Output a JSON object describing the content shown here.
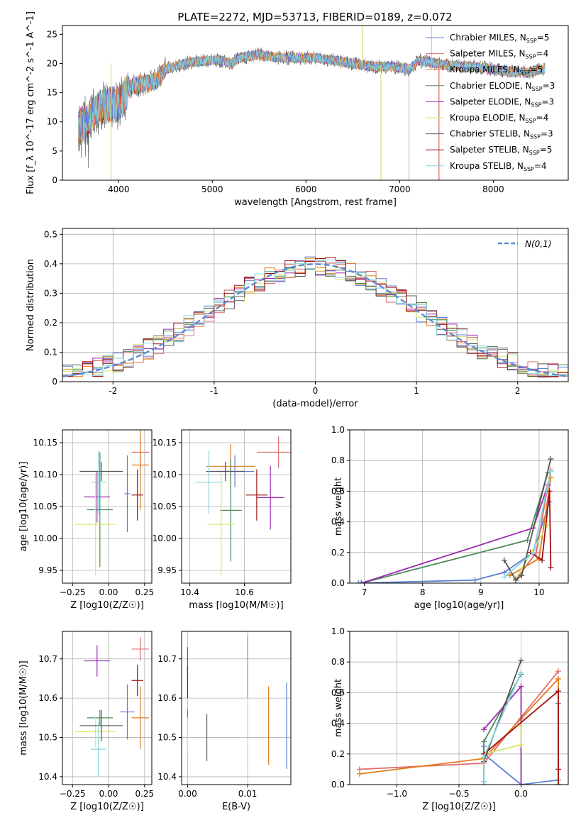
{
  "title": "PLATE=2272, MJD=53713, FIBERID=0189, z=0.072",
  "colors": [
    "#5b7fd6",
    "#e06c6c",
    "#e07b1c",
    "#4c8a5a",
    "#9b2ab0",
    "#d6e86a",
    "#555555",
    "#a01010",
    "#86d6e0"
  ],
  "legend": [
    "Chrabier MILES, N_SSP=5",
    "Salpeter MILES, N_SSP=4",
    "Kroupa MILES, N_SSP=5",
    "Chabrier ELODIE, N_SSP=3",
    "Salpeter ELODIE, N_SSP=3",
    "Kroupa ELODIE, N_SSP=4",
    "Chabrier STELIB, N_SSP=3",
    "Salpeter STELIB, N_SSP=5",
    "Kroupa STELIB, N_SSP=4"
  ],
  "chart_data": [
    {
      "type": "line",
      "title": "PLATE=2272, MJD=53713, FIBERID=0189, z=0.072",
      "xlabel": "wavelength [Angstrom, rest frame]",
      "ylabel": "Flux [f_λ 10^-17 erg cm^-2 s^-1 A^-1]",
      "xlim": [
        3400,
        8800
      ],
      "ylim": [
        0,
        26.5
      ],
      "xticks": [
        4000,
        5000,
        6000,
        7000,
        8000
      ],
      "yticks": [
        0,
        5,
        10,
        15,
        20,
        25
      ],
      "continuum": [
        [
          3570,
          9
        ],
        [
          3700,
          11
        ],
        [
          3800,
          12.5
        ],
        [
          3900,
          13
        ],
        [
          4000,
          13
        ],
        [
          4100,
          15.5
        ],
        [
          4200,
          16.5
        ],
        [
          4300,
          16.5
        ],
        [
          4400,
          17
        ],
        [
          4500,
          19
        ],
        [
          4700,
          20
        ],
        [
          4900,
          20.5
        ],
        [
          5100,
          20.5
        ],
        [
          5200,
          20
        ],
        [
          5300,
          21
        ],
        [
          5500,
          21.5
        ],
        [
          5700,
          21
        ],
        [
          5900,
          21
        ],
        [
          6100,
          21
        ],
        [
          6300,
          20.5
        ],
        [
          6500,
          20
        ],
        [
          6700,
          19.5
        ],
        [
          6900,
          19.5
        ],
        [
          7100,
          19
        ],
        [
          7200,
          20.5
        ],
        [
          7400,
          20
        ],
        [
          7600,
          19.5
        ],
        [
          7800,
          19.5
        ],
        [
          8000,
          19
        ],
        [
          8200,
          18.5
        ],
        [
          8400,
          18.5
        ],
        [
          8500,
          19
        ]
      ],
      "spikes": [
        [
          3920,
          0
        ],
        [
          6800,
          0
        ],
        [
          7100,
          0
        ],
        [
          7420,
          0
        ],
        [
          7340,
          26.5
        ],
        [
          6600,
          26.5
        ]
      ]
    },
    {
      "type": "step",
      "xlabel": "(data-model)/error",
      "ylabel": "Normed distribution",
      "xlim": [
        -2.5,
        2.5
      ],
      "ylim": [
        0,
        0.52
      ],
      "xticks": [
        -2,
        -1,
        0,
        1,
        2
      ],
      "yticks": [
        0.0,
        0.1,
        0.2,
        0.3,
        0.4,
        0.5
      ],
      "legend": "N(0,1)",
      "bin_width": 0.1
    },
    {
      "type": "scatter",
      "xlabel": "Z [log10(Z/Z☉)]",
      "ylabel": "age [log10(age/yr)]",
      "xlim": [
        -0.32,
        0.3
      ],
      "ylim": [
        9.93,
        10.17
      ],
      "xticks": [
        -0.25,
        0.0,
        0.25
      ],
      "xticklabels": [
        "−0.25",
        "0.00",
        "0.25"
      ],
      "yticks": [
        9.95,
        10.0,
        10.05,
        10.1,
        10.15
      ],
      "yticklabels": [
        "9.95",
        "10.00",
        "10.05",
        "10.10",
        "10.15"
      ],
      "points": [
        {
          "c": 0,
          "x": 0.13,
          "y": 10.07,
          "xe": 0.02,
          "ye": 0.06
        },
        {
          "c": 1,
          "x": 0.22,
          "y": 10.135,
          "xe": 0.06,
          "ye": 0.025
        },
        {
          "c": 2,
          "x": 0.22,
          "y": 10.115,
          "xe": 0.06,
          "ye": 0.07
        },
        {
          "c": 3,
          "x": -0.06,
          "y": 10.045,
          "xe": 0.09,
          "ye": 0.09
        },
        {
          "c": 4,
          "x": -0.08,
          "y": 10.065,
          "xe": 0.09,
          "ye": 0.04
        },
        {
          "c": 5,
          "x": -0.09,
          "y": 10.022,
          "xe": 0.14,
          "ye": 0.08
        },
        {
          "c": 6,
          "x": -0.05,
          "y": 10.105,
          "xe": 0.15,
          "ye": 0.015
        },
        {
          "c": 7,
          "x": 0.2,
          "y": 10.068,
          "xe": 0.04,
          "ye": 0.04
        },
        {
          "c": 8,
          "x": -0.07,
          "y": 10.088,
          "xe": 0.05,
          "ye": 0.05
        }
      ]
    },
    {
      "type": "scatter",
      "xlabel": "mass [log10(M/M☉)]",
      "ylabel": "",
      "xlim": [
        10.37,
        10.77
      ],
      "ylim": [
        9.93,
        10.17
      ],
      "xticks": [
        10.4,
        10.6
      ],
      "xticklabels": [
        "10.4",
        "10.6"
      ],
      "yticks": [
        9.95,
        10.0,
        10.05,
        10.1,
        10.15
      ],
      "yticklabels": [
        "9.95",
        "10.00",
        "10.05",
        "10.10",
        "10.15"
      ],
      "points": [
        {
          "c": 0,
          "x": 10.565,
          "y": 10.105,
          "xe": 0.07,
          "ye": 0.025
        },
        {
          "c": 1,
          "x": 10.725,
          "y": 10.135,
          "xe": 0.08,
          "ye": 0.025
        },
        {
          "c": 2,
          "x": 10.55,
          "y": 10.113,
          "xe": 0.09,
          "ye": 0.035
        },
        {
          "c": 3,
          "x": 10.55,
          "y": 10.044,
          "xe": 0.04,
          "ye": 0.08
        },
        {
          "c": 4,
          "x": 10.695,
          "y": 10.064,
          "xe": 0.05,
          "ye": 0.05
        },
        {
          "c": 5,
          "x": 10.515,
          "y": 10.022,
          "xe": 0.05,
          "ye": 0.08
        },
        {
          "c": 6,
          "x": 10.53,
          "y": 10.105,
          "xe": 0.07,
          "ye": 0.015
        },
        {
          "c": 7,
          "x": 10.645,
          "y": 10.068,
          "xe": 0.04,
          "ye": 0.04
        },
        {
          "c": 8,
          "x": 10.47,
          "y": 10.088,
          "xe": 0.05,
          "ye": 0.05
        }
      ]
    },
    {
      "type": "line",
      "xlabel": "age  [log10(age/yr)]",
      "ylabel": "mass weight",
      "xlim": [
        6.75,
        10.5
      ],
      "ylim": [
        0,
        1
      ],
      "xticks": [
        7,
        8,
        9,
        10
      ],
      "xticklabels": [
        "7",
        "8",
        "9",
        "10"
      ],
      "yticks": [
        0,
        0.2,
        0.4,
        0.6,
        0.8,
        1.0
      ],
      "yticklabels": [
        "0.0",
        "0.2",
        "0.4",
        "0.6",
        "0.8",
        "1.0"
      ],
      "series": [
        {
          "c": 0,
          "pts": [
            [
              6.9,
              0.0
            ],
            [
              8.9,
              0.02
            ],
            [
              9.4,
              0.07
            ],
            [
              9.9,
              0.2
            ],
            [
              10.18,
              0.53
            ]
          ]
        },
        {
          "c": 1,
          "pts": [
            [
              9.6,
              0.02
            ],
            [
              9.95,
              0.2
            ],
            [
              10.2,
              0.74
            ]
          ]
        },
        {
          "c": 2,
          "pts": [
            [
              9.5,
              0.05
            ],
            [
              10.0,
              0.16
            ],
            [
              10.2,
              0.69
            ]
          ]
        },
        {
          "c": 3,
          "pts": [
            [
              6.95,
              0.0
            ],
            [
              9.8,
              0.28
            ],
            [
              10.15,
              0.72
            ]
          ]
        },
        {
          "c": 4,
          "pts": [
            [
              6.95,
              0.0
            ],
            [
              9.9,
              0.36
            ],
            [
              10.15,
              0.64
            ]
          ]
        },
        {
          "c": 5,
          "pts": [
            [
              9.6,
              0.03
            ],
            [
              10.15,
              0.38
            ]
          ]
        },
        {
          "c": 6,
          "pts": [
            [
              9.4,
              0.15
            ],
            [
              9.6,
              0.02
            ],
            [
              9.7,
              0.05
            ],
            [
              10.2,
              0.81
            ]
          ]
        },
        {
          "c": 7,
          "pts": [
            [
              9.85,
              0.2
            ],
            [
              10.05,
              0.15
            ],
            [
              10.18,
              0.6
            ],
            [
              10.2,
              0.1
            ]
          ]
        },
        {
          "c": 8,
          "pts": [
            [
              9.4,
              0.04
            ],
            [
              9.9,
              0.2
            ],
            [
              10.2,
              0.73
            ]
          ]
        }
      ]
    },
    {
      "type": "scatter",
      "xlabel": "Z [log10(Z/Z☉)]",
      "ylabel": "mass [log10(M/M☉)]",
      "xlim": [
        -0.32,
        0.3
      ],
      "ylim": [
        10.38,
        10.77
      ],
      "xticks": [
        -0.25,
        0.0,
        0.25
      ],
      "xticklabels": [
        "−0.25",
        "0.00",
        "0.25"
      ],
      "yticks": [
        10.4,
        10.5,
        10.6,
        10.7
      ],
      "yticklabels": [
        "10.4",
        "10.5",
        "10.6",
        "10.7"
      ],
      "points": [
        {
          "c": 0,
          "x": 0.13,
          "y": 10.565,
          "xe": 0.05,
          "ye": 0.07
        },
        {
          "c": 1,
          "x": 0.22,
          "y": 10.725,
          "xe": 0.06,
          "ye": 0.03
        },
        {
          "c": 2,
          "x": 0.22,
          "y": 10.55,
          "xe": 0.06,
          "ye": 0.08
        },
        {
          "c": 3,
          "x": -0.06,
          "y": 10.55,
          "xe": 0.09,
          "ye": 0.02
        },
        {
          "c": 4,
          "x": -0.08,
          "y": 10.695,
          "xe": 0.09,
          "ye": 0.04
        },
        {
          "c": 5,
          "x": -0.09,
          "y": 10.515,
          "xe": 0.14,
          "ye": 0.04
        },
        {
          "c": 6,
          "x": -0.05,
          "y": 10.53,
          "xe": 0.15,
          "ye": 0.04
        },
        {
          "c": 7,
          "x": 0.2,
          "y": 10.645,
          "xe": 0.04,
          "ye": 0.04
        },
        {
          "c": 8,
          "x": -0.07,
          "y": 10.47,
          "xe": 0.05,
          "ye": 0.07
        }
      ]
    },
    {
      "type": "scatter",
      "xlabel": "E(B-V)",
      "ylabel": "",
      "xlim": [
        -0.001,
        0.0172
      ],
      "ylim": [
        10.38,
        10.77
      ],
      "xticks": [
        0.0,
        0.01
      ],
      "xticklabels": [
        "0.00",
        "0.01"
      ],
      "yticks": [
        10.4,
        10.5,
        10.6,
        10.7
      ],
      "yticklabels": [
        "10.4",
        "10.5",
        "10.6",
        "10.7"
      ],
      "points": [
        {
          "c": 0,
          "x": 0.0165,
          "y": 10.53,
          "xe": 0,
          "ye": 0.11
        },
        {
          "c": 1,
          "x": 0.01,
          "y": 10.68,
          "xe": 0,
          "ye": 0.08
        },
        {
          "c": 2,
          "x": 0.0135,
          "y": 10.53,
          "xe": 0,
          "ye": 0.1
        },
        {
          "c": 3,
          "x": 0.0,
          "y": 10.52,
          "xe": 0,
          "ye": 0.05
        },
        {
          "c": 4,
          "x": 0.0,
          "y": 10.69,
          "xe": 0,
          "ye": 0.04
        },
        {
          "c": 5,
          "x": 0.0,
          "y": 10.5,
          "xe": 0,
          "ye": 0.05
        },
        {
          "c": 6,
          "x": 0.0032,
          "y": 10.5,
          "xe": 0,
          "ye": 0.06
        },
        {
          "c": 7,
          "x": 0.0,
          "y": 10.64,
          "xe": 0,
          "ye": 0.04
        },
        {
          "c": 8,
          "x": 0.0,
          "y": 10.42,
          "xe": 0,
          "ye": 0.04
        }
      ]
    },
    {
      "type": "line",
      "xlabel": "Z [log10(Z/Z☉)]",
      "ylabel": "mass weight",
      "xlim": [
        -1.38,
        0.38
      ],
      "ylim": [
        0,
        1
      ],
      "xticks": [
        -1.0,
        -0.5,
        0.0
      ],
      "xticklabels": [
        "−1.0",
        "−0.5",
        "0.0"
      ],
      "yticks": [
        0,
        0.2,
        0.4,
        0.6,
        0.8,
        1.0
      ],
      "yticklabels": [
        "0.0",
        "0.2",
        "0.4",
        "0.6",
        "0.8",
        "1.0"
      ],
      "series": [
        {
          "c": 0,
          "pts": [
            [
              -0.3,
              0.25
            ],
            [
              -0.3,
              0.2
            ],
            [
              0.0,
              0.0
            ],
            [
              0.3,
              0.03
            ],
            [
              0.3,
              0.53
            ]
          ]
        },
        {
          "c": 1,
          "pts": [
            [
              -1.3,
              0.1
            ],
            [
              -0.3,
              0.14
            ],
            [
              0.3,
              0.74
            ]
          ]
        },
        {
          "c": 2,
          "pts": [
            [
              -1.3,
              0.07
            ],
            [
              -0.3,
              0.17
            ],
            [
              0.0,
              0.43
            ],
            [
              0.3,
              0.69
            ],
            [
              0.3,
              0.0
            ]
          ]
        },
        {
          "c": 3,
          "pts": [
            [
              -0.3,
              0.0
            ],
            [
              -0.3,
              0.28
            ],
            [
              0.0,
              0.72
            ]
          ]
        },
        {
          "c": 4,
          "pts": [
            [
              -0.3,
              0.36
            ],
            [
              0.0,
              0.64
            ],
            [
              0.0,
              0.0
            ]
          ]
        },
        {
          "c": 5,
          "pts": [
            [
              -0.3,
              0.2
            ],
            [
              0.0,
              0.26
            ],
            [
              0.0,
              0.38
            ]
          ]
        },
        {
          "c": 6,
          "pts": [
            [
              -0.3,
              0.02
            ],
            [
              -0.3,
              0.15
            ],
            [
              0.0,
              0.81
            ]
          ]
        },
        {
          "c": 7,
          "pts": [
            [
              -0.3,
              0.2
            ],
            [
              0.3,
              0.61
            ],
            [
              0.3,
              0.1
            ],
            [
              0.3,
              0.0
            ]
          ]
        },
        {
          "c": 8,
          "pts": [
            [
              -0.3,
              0.02
            ],
            [
              -0.3,
              0.18
            ],
            [
              0.0,
              0.73
            ]
          ]
        }
      ]
    }
  ]
}
